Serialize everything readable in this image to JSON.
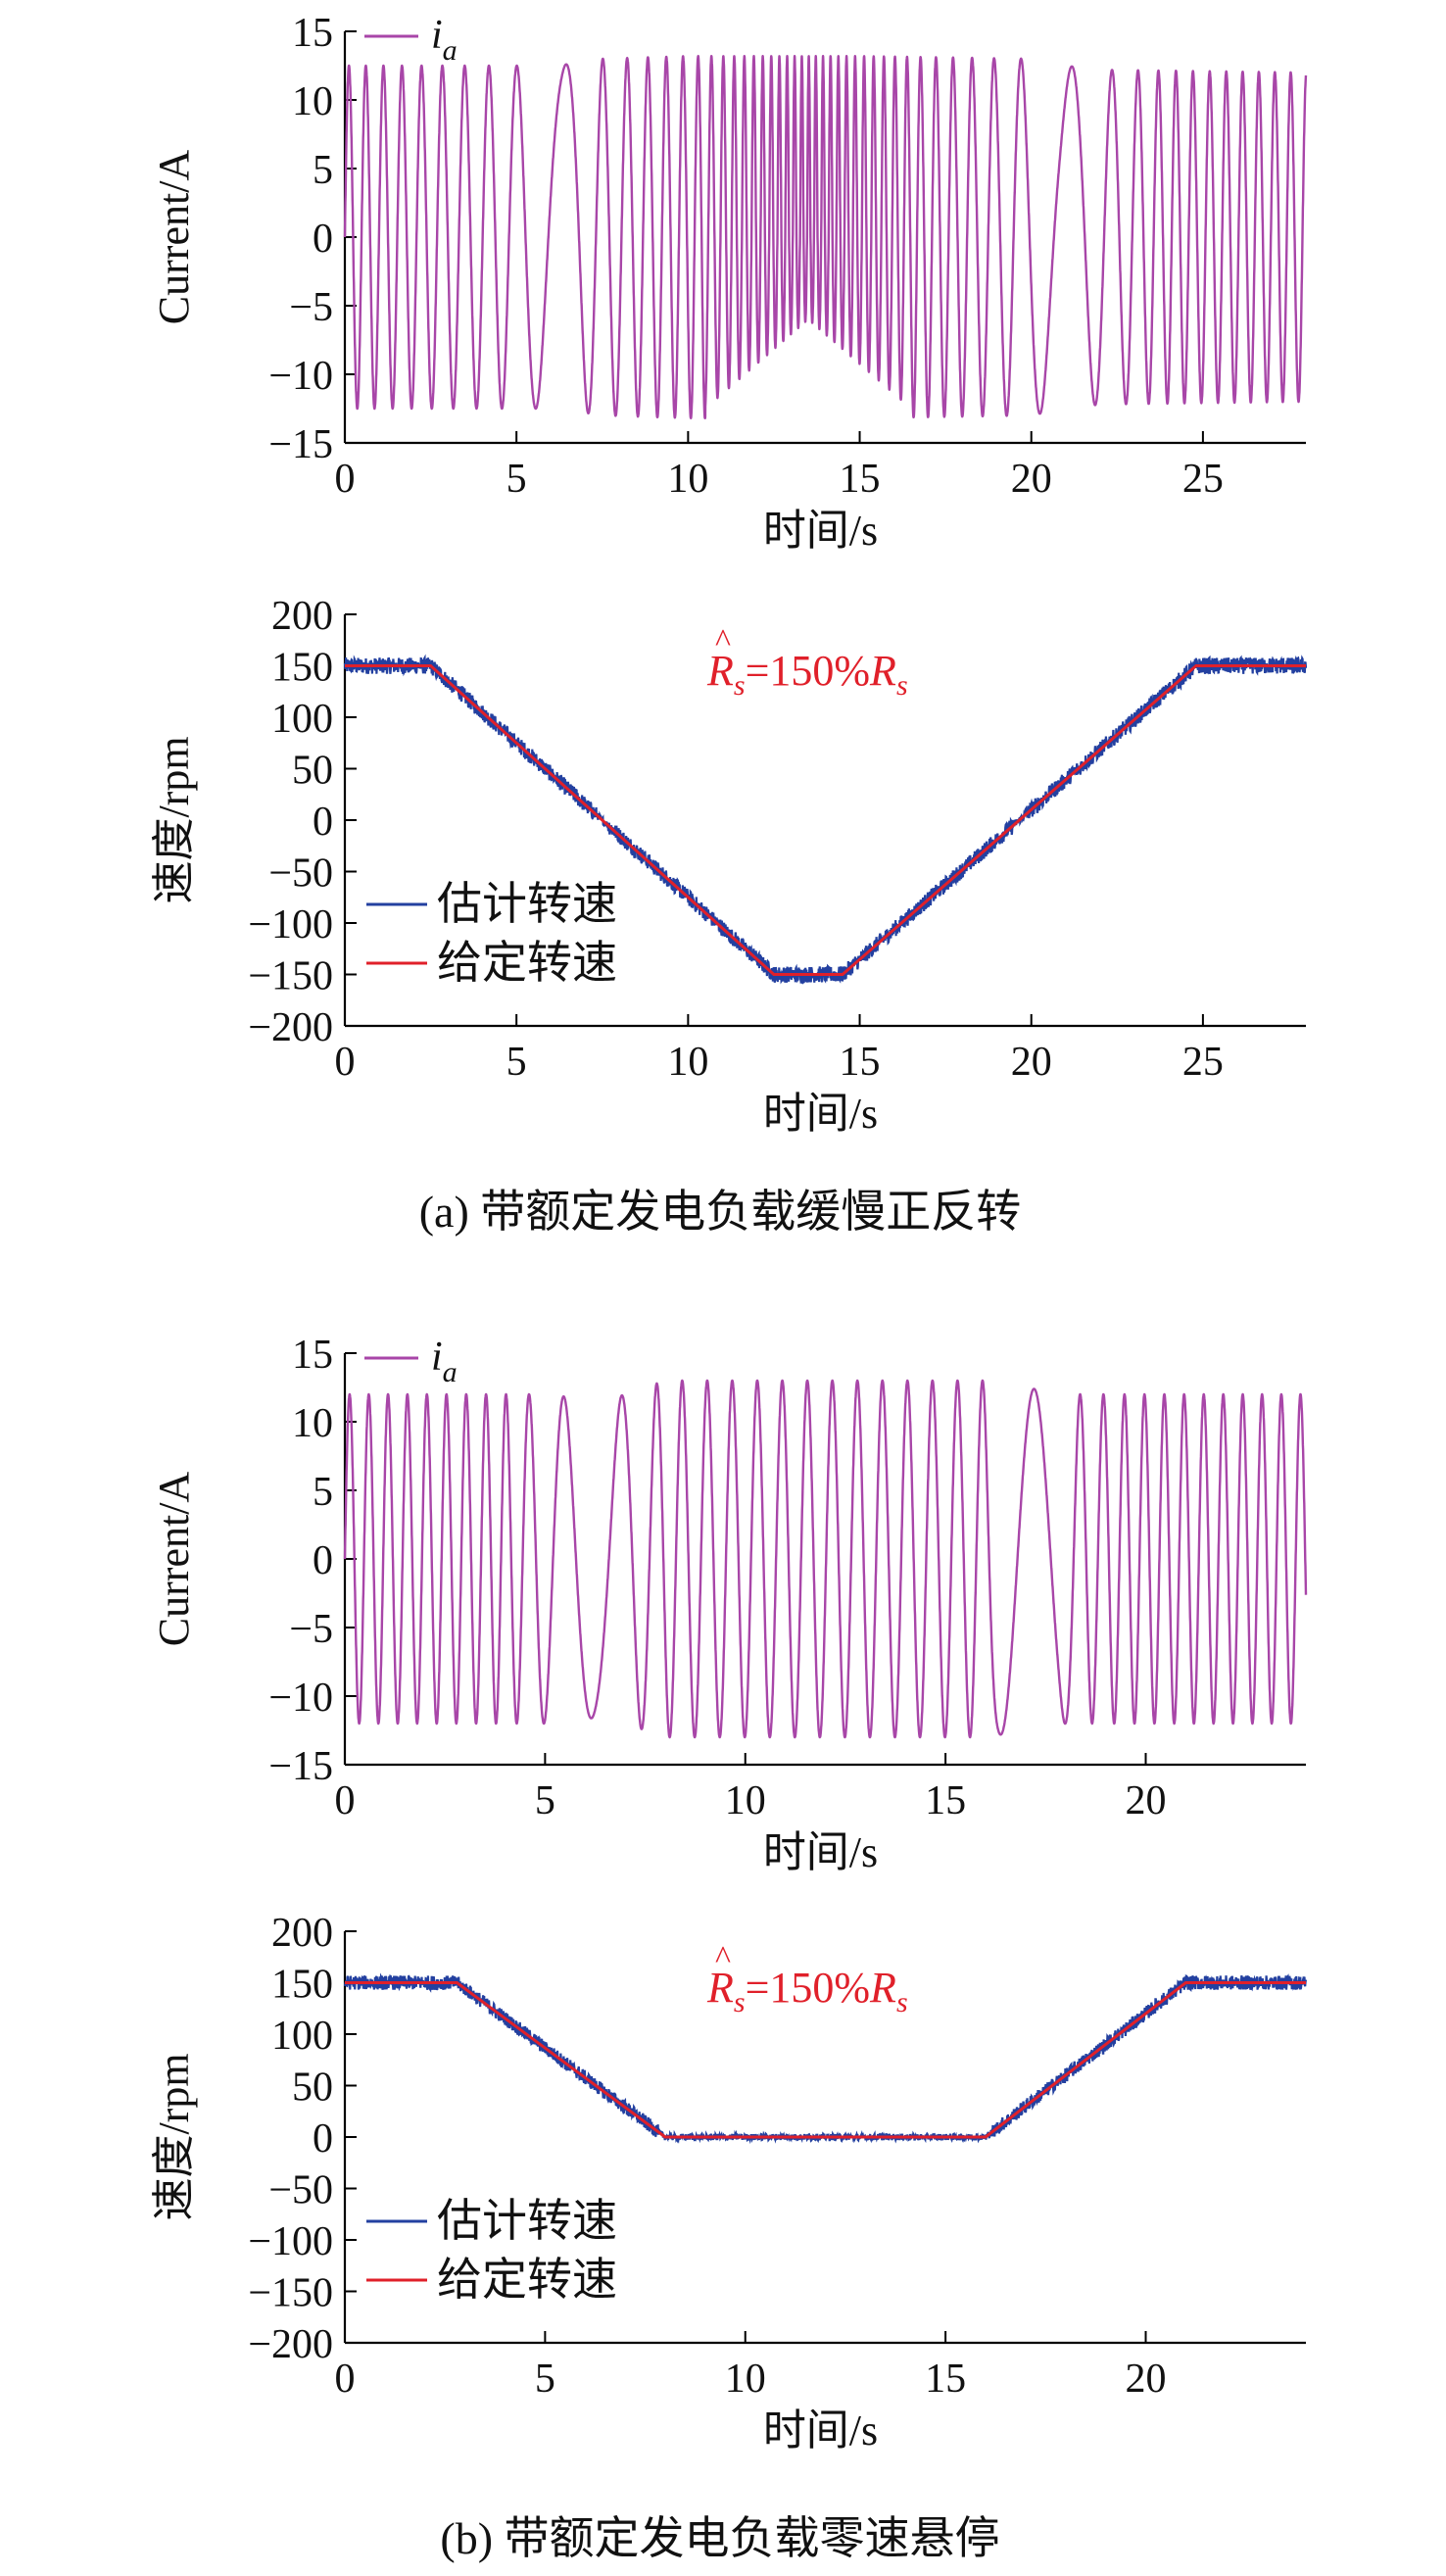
{
  "figure": {
    "caption_a": "(a) 带额定发电负载缓慢正反转",
    "caption_b": "(b) 带额定发电负载零速悬停"
  },
  "colors": {
    "current": "#a846a8",
    "estimated": "#2340a0",
    "reference": "#e0202a",
    "annotation": "#e0202a",
    "axis": "#000000"
  },
  "chart_data": [
    {
      "id": "a-current",
      "type": "line",
      "xlabel": "时间/s",
      "ylabel": "Current/A",
      "xlim": [
        0,
        28
      ],
      "ylim": [
        -15,
        15
      ],
      "xticks": [
        0,
        5,
        10,
        15,
        20,
        25
      ],
      "yticks": [
        15,
        10,
        5,
        0,
        -5,
        -10,
        -15
      ],
      "legend": "top-left",
      "series": [
        {
          "name": "i",
          "name_sub": "a",
          "kind": "sinusoid",
          "envelope": [
            [
              0,
              12.5
            ],
            [
              5,
              12.5
            ],
            [
              6.2,
              12.5
            ],
            [
              7.5,
              13
            ],
            [
              10,
              13.2
            ],
            [
              15,
              13.2
            ],
            [
              20,
              13
            ],
            [
              21,
              12.5
            ],
            [
              22,
              12.2
            ],
            [
              28,
              12
            ]
          ],
          "frequency_hz": [
            [
              0,
              2.1
            ],
            [
              4.5,
              1.3
            ],
            [
              6.3,
              0.4
            ],
            [
              7.3,
              1.2
            ],
            [
              10,
              2.2
            ],
            [
              13.5,
              5.0
            ],
            [
              17,
              2.2
            ],
            [
              19.5,
              1.2
            ],
            [
              20.8,
              0.4
            ],
            [
              22.5,
              1.2
            ],
            [
              24,
              2.0
            ],
            [
              28,
              2.2
            ]
          ],
          "envelope_low_fill": [
            [
              10.5,
              12.5
            ],
            [
              13.5,
              6
            ],
            [
              16.5,
              12.5
            ]
          ]
        }
      ]
    },
    {
      "id": "a-speed",
      "type": "line",
      "xlabel": "时间/s",
      "ylabel": "速度/rpm",
      "xlim": [
        0,
        28
      ],
      "ylim": [
        -200,
        200
      ],
      "xticks": [
        0,
        5,
        10,
        15,
        20,
        25
      ],
      "yticks": [
        200,
        150,
        100,
        50,
        0,
        -50,
        -100,
        -150,
        -200
      ],
      "legend": "bottom-left",
      "annotation": "R̂s=150%Rs",
      "series": [
        {
          "name": "估计转速",
          "x": [
            0,
            2.5,
            12.5,
            14.5,
            24.8,
            28
          ],
          "y": [
            150,
            150,
            -150,
            -150,
            150,
            150
          ],
          "noise": 8
        },
        {
          "name": "给定转速",
          "x": [
            0,
            2.5,
            12.5,
            14.5,
            24.8,
            28
          ],
          "y": [
            150,
            150,
            -150,
            -150,
            150,
            150
          ]
        }
      ]
    },
    {
      "id": "b-current",
      "type": "line",
      "xlabel": "时间/s",
      "ylabel": "Current/A",
      "xlim": [
        0,
        24
      ],
      "ylim": [
        -15,
        15
      ],
      "xticks": [
        0,
        5,
        10,
        15,
        20
      ],
      "yticks": [
        15,
        10,
        5,
        0,
        -5,
        -10,
        -15
      ],
      "legend": "top-left",
      "series": [
        {
          "name": "i",
          "name_sub": "a",
          "kind": "sinusoid",
          "envelope": [
            [
              0,
              12
            ],
            [
              5,
              12
            ],
            [
              6.5,
              11.5
            ],
            [
              8,
              13
            ],
            [
              16,
              13
            ],
            [
              17,
              12.5
            ],
            [
              18,
              12
            ],
            [
              24,
              12
            ]
          ],
          "frequency_hz": [
            [
              0,
              2.1
            ],
            [
              4,
              2.0
            ],
            [
              5.2,
              1.0
            ],
            [
              6.3,
              0.5
            ],
            [
              7.3,
              1.1
            ],
            [
              8,
              1.6
            ],
            [
              16,
              1.6
            ],
            [
              16.3,
              0.6
            ],
            [
              17.8,
              0.6
            ],
            [
              18.3,
              1.6
            ],
            [
              19.5,
              2.0
            ],
            [
              24,
              2.1
            ]
          ]
        }
      ]
    },
    {
      "id": "b-speed",
      "type": "line",
      "xlabel": "时间/s",
      "ylabel": "速度/rpm",
      "xlim": [
        0,
        24
      ],
      "ylim": [
        -200,
        200
      ],
      "xticks": [
        0,
        5,
        10,
        15,
        20
      ],
      "yticks": [
        200,
        150,
        100,
        50,
        0,
        -50,
        -100,
        -150,
        -200
      ],
      "legend": "bottom-left",
      "annotation": "R̂s=150%Rs",
      "series": [
        {
          "name": "估计转速",
          "x": [
            0,
            2.8,
            8,
            16,
            21,
            24
          ],
          "y": [
            150,
            150,
            0,
            0,
            150,
            150
          ],
          "noise": 7
        },
        {
          "name": "给定转速",
          "x": [
            0,
            2.8,
            8,
            16,
            21,
            24
          ],
          "y": [
            150,
            150,
            0,
            0,
            150,
            150
          ]
        }
      ]
    }
  ]
}
